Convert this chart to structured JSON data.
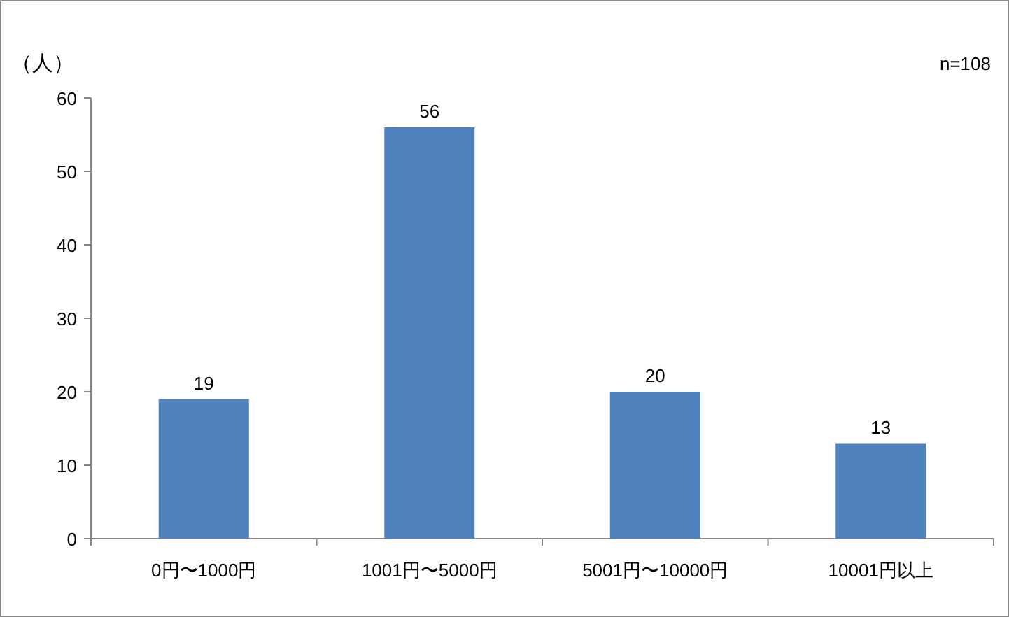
{
  "chart_data": {
    "type": "bar",
    "categories": [
      "0円〜1000円",
      "1001円〜5000円",
      "5001円〜10000円",
      "10001円以上"
    ],
    "values": [
      19,
      56,
      20,
      13
    ],
    "color": "#4f81bd",
    "ylabel": "（人）",
    "annotations": [
      "n=108"
    ],
    "ylim": [
      0,
      60
    ],
    "yticks": [
      0,
      10,
      20,
      30,
      40,
      50,
      60
    ],
    "data_labels": true,
    "grid": false
  }
}
